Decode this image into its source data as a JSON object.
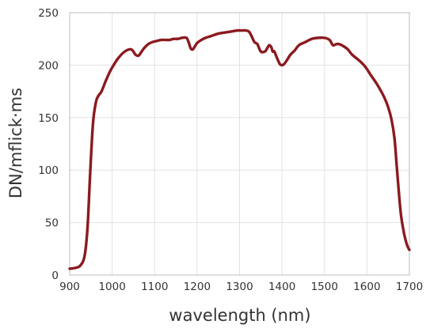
{
  "chart_data": {
    "type": "line",
    "title": "",
    "xlabel": "wavelength (nm)",
    "ylabel": "DN/mflick·ms",
    "xlim": [
      900,
      1700
    ],
    "ylim": [
      0,
      250
    ],
    "x_ticks": [
      "900",
      "1000",
      "1100",
      "1200",
      "1300",
      "1400",
      "1500",
      "1600",
      "1700"
    ],
    "y_ticks": [
      "0",
      "50",
      "100",
      "150",
      "200",
      "250"
    ],
    "grid": true,
    "legend": "none",
    "line_color": "#8b1a1f",
    "series": [
      {
        "x": [
          900,
          915,
          925,
          935,
          942,
          948,
          955,
          962,
          968,
          975,
          985,
          995,
          1005,
          1015,
          1030,
          1045,
          1055,
          1062,
          1068,
          1075,
          1085,
          1095,
          1105,
          1115,
          1125,
          1135,
          1145,
          1155,
          1165,
          1175,
          1180,
          1185,
          1190,
          1195,
          1200,
          1210,
          1220,
          1235,
          1250,
          1265,
          1280,
          1295,
          1305,
          1315,
          1322,
          1328,
          1335,
          1342,
          1350,
          1360,
          1365,
          1370,
          1375,
          1378,
          1382,
          1388,
          1395,
          1400,
          1405,
          1412,
          1420,
          1430,
          1440,
          1455,
          1470,
          1485,
          1500,
          1512,
          1520,
          1528,
          1535,
          1545,
          1555,
          1565,
          1580,
          1595,
          1610,
          1625,
          1640,
          1650,
          1658,
          1665,
          1670,
          1675,
          1680,
          1685,
          1690,
          1695,
          1700
        ],
        "y": [
          6,
          7,
          9,
          18,
          45,
          95,
          145,
          165,
          171,
          175,
          185,
          194,
          201,
          207,
          213,
          215,
          210,
          209,
          212,
          216,
          220,
          222,
          223,
          224,
          224,
          224,
          225,
          225,
          226,
          226,
          222,
          216,
          215,
          218,
          221,
          224,
          226,
          228,
          230,
          231,
          232,
          233,
          233,
          233,
          232,
          228,
          222,
          220,
          213,
          213,
          216,
          219,
          217,
          213,
          213,
          207,
          201,
          200,
          201,
          205,
          210,
          214,
          219,
          222,
          225,
          226,
          226,
          224,
          219,
          220,
          220,
          218,
          215,
          210,
          205,
          199,
          190,
          181,
          170,
          160,
          148,
          130,
          105,
          80,
          58,
          45,
          35,
          28,
          24
        ]
      }
    ]
  }
}
